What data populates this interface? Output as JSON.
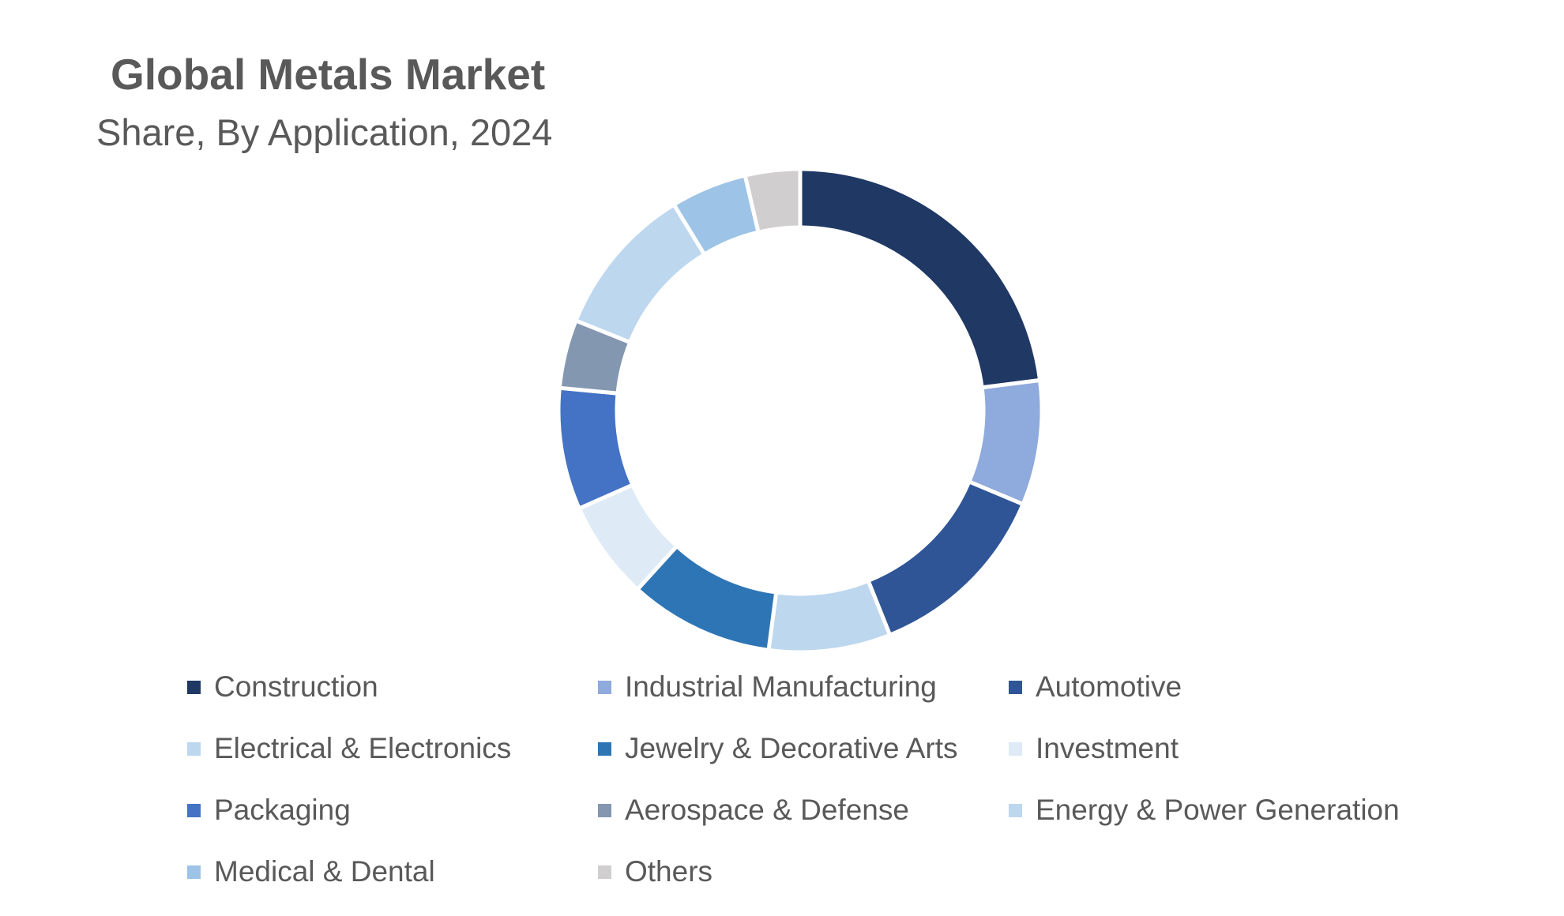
{
  "chart_data": {
    "type": "pie",
    "variant": "donut",
    "title": "Global Metals Market",
    "subtitle": "Share, By Application, 2024",
    "categories": [
      "Construction",
      "Industrial Manufacturing",
      "Automotive",
      "Electrical & Electronics",
      "Jewelry & Decorative Arts",
      "Investment",
      "Packaging",
      "Aerospace & Defense",
      "Energy & Power Generation",
      "Medical & Dental",
      "Others"
    ],
    "values": [
      22.6,
      8.2,
      12.4,
      8.0,
      9.5,
      6.5,
      8.0,
      4.5,
      10.0,
      5.0,
      3.6
    ],
    "colors": [
      "#1f3864",
      "#8faadc",
      "#2f5597",
      "#bdd7ee",
      "#2e75b6",
      "#deebf7",
      "#4472c4",
      "#8497b0",
      "#bdd7ee",
      "#9dc3e6",
      "#d0cece"
    ],
    "legend_position": "bottom",
    "data_labels": false
  }
}
